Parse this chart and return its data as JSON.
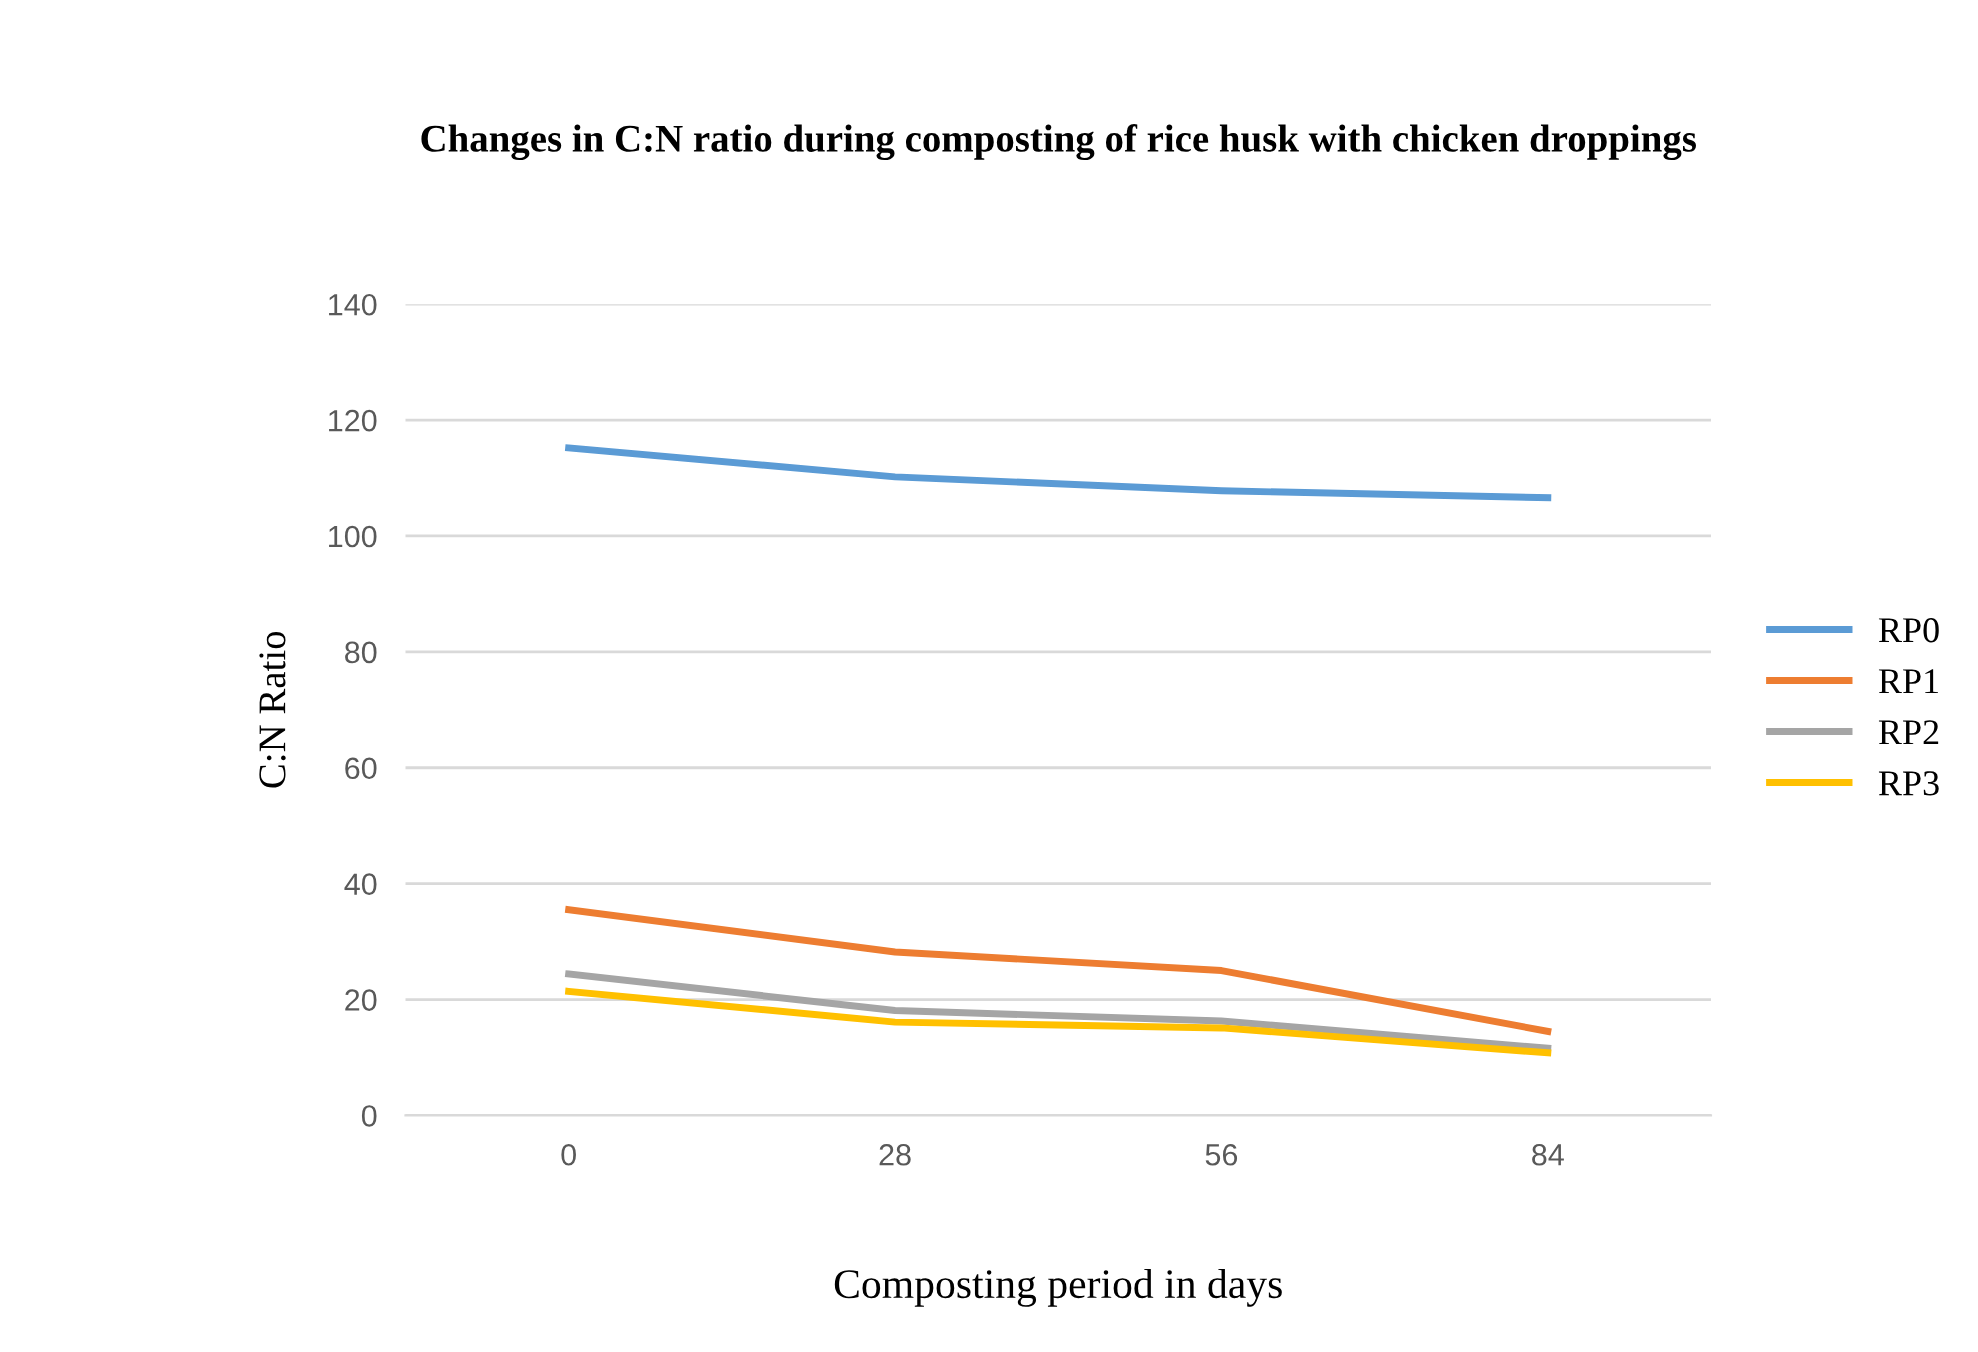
{
  "chart_data": {
    "type": "line",
    "title": "Changes in C:N ratio during composting of rice husk with chicken droppings",
    "xlabel": "Composting period in days",
    "ylabel": "C:N Ratio",
    "categories": [
      "0",
      "28",
      "56",
      "84"
    ],
    "series": [
      {
        "name": "RP0",
        "color": "#5b9bd5",
        "values": [
          115.2,
          110.2,
          107.8,
          106.6
        ]
      },
      {
        "name": "RP1",
        "color": "#ed7d31",
        "values": [
          35.5,
          28.2,
          25,
          14.5
        ]
      },
      {
        "name": "RP2",
        "color": "#a5a5a5",
        "values": [
          24.4,
          18.1,
          16.3,
          11.6
        ]
      },
      {
        "name": "RP3",
        "color": "#ffc000",
        "values": [
          21.4,
          16.1,
          15.1,
          10.8
        ]
      }
    ],
    "ylim": [
      0,
      140
    ],
    "yticks": [
      0,
      20,
      40,
      60,
      80,
      100,
      120,
      140
    ],
    "grid": "y",
    "legend": "right",
    "marker": "none",
    "line_style": "solid"
  }
}
